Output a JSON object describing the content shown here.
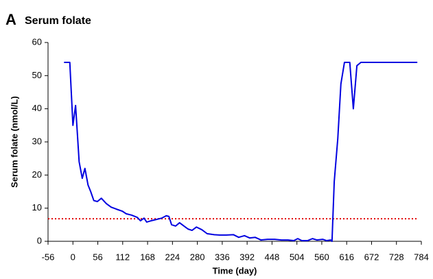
{
  "chart_data": {
    "type": "line",
    "panel_label": "A",
    "title": "Serum folate",
    "xlabel": "Time (day)",
    "ylabel": "Serum folate (nmol/L)",
    "xlim": [
      -56,
      784
    ],
    "xticks": [
      -56,
      0,
      56,
      112,
      168,
      224,
      280,
      336,
      392,
      448,
      504,
      560,
      616,
      672,
      728,
      784
    ],
    "ylim": [
      0,
      60
    ],
    "yticks": [
      0,
      10,
      20,
      30,
      40,
      50,
      60
    ],
    "reference_line": {
      "value": 6.8,
      "color": "#e00000",
      "style": "dotted"
    },
    "series": [
      {
        "name": "Serum folate",
        "color": "#0000e0",
        "x": [
          -20,
          -7,
          0,
          6,
          14,
          21,
          27,
          34,
          40,
          47,
          55,
          64,
          75,
          86,
          98,
          111,
          120,
          132,
          145,
          152,
          160,
          166,
          176,
          188,
          200,
          210,
          216,
          222,
          231,
          240,
          250,
          259,
          268,
          278,
          290,
          302,
          318,
          330,
          345,
          361,
          373,
          386,
          398,
          410,
          423,
          438,
          454,
          469,
          484,
          497,
          506,
          515,
          528,
          539,
          549,
          562,
          571,
          580,
          583,
          588,
          596,
          603,
          611,
          623,
          631,
          639,
          648,
          775
        ],
        "values": [
          54,
          54,
          35,
          41,
          24,
          19,
          22,
          17,
          15,
          12.3,
          12,
          13,
          11.4,
          10.3,
          9.7,
          9.1,
          8.3,
          7.9,
          7.2,
          6.2,
          7,
          5.8,
          6.2,
          6.6,
          7,
          7.7,
          7.5,
          5,
          4.6,
          5.6,
          4.6,
          3.7,
          3.3,
          4.3,
          3.5,
          2.3,
          2,
          1.9,
          1.9,
          2,
          1.2,
          1.7,
          1,
          1.2,
          0.4,
          0.6,
          0.6,
          0.4,
          0.4,
          0.2,
          0.8,
          0.2,
          0.2,
          0.8,
          0.4,
          0.6,
          0.2,
          0.4,
          0,
          18,
          31,
          47.5,
          54,
          54,
          40,
          53,
          54,
          54
        ]
      }
    ]
  }
}
